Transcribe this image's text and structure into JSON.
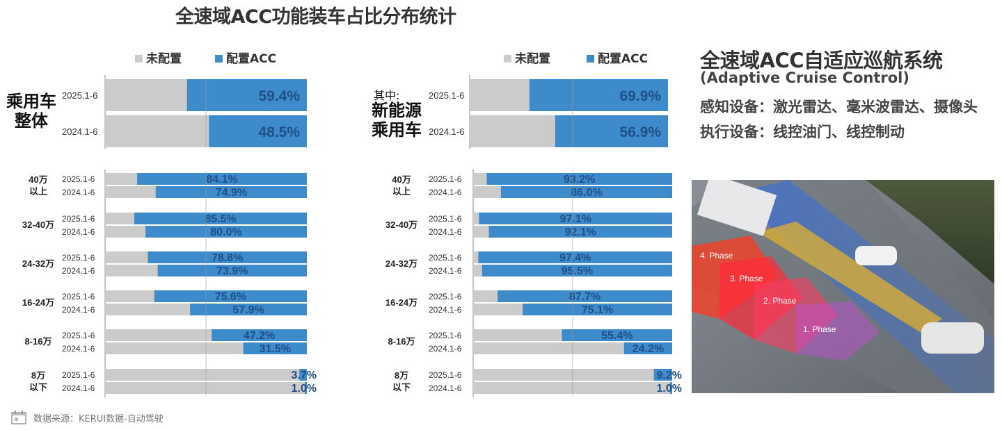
{
  "title": "全速域ACC功能装车占比分布统计",
  "legend": {
    "not_configured": "未配置",
    "configured": "配置ACC"
  },
  "colors": {
    "not_configured": "#cbcbcb",
    "configured": "#3d8bcb",
    "label": "#1f4f86"
  },
  "left_group": {
    "label_line1": "乘用车",
    "label_line2": "整体"
  },
  "right_group": {
    "prefix": "其中:",
    "label_line1": "新能源",
    "label_line2": "乘用车"
  },
  "chart_data": [
    {
      "type": "bar",
      "orientation": "horizontal",
      "stacked": true,
      "panel": "乘用车整体 - 总体",
      "categories": [
        "2025.1-6",
        "2024.1-6"
      ],
      "series": [
        {
          "name": "配置ACC",
          "values": [
            59.4,
            48.5
          ]
        },
        {
          "name": "未配置",
          "values": [
            40.6,
            51.5
          ]
        }
      ],
      "labels": [
        "59.4%",
        "48.5%"
      ]
    },
    {
      "type": "bar",
      "orientation": "horizontal",
      "stacked": true,
      "panel": "乘用车整体 - 价格段",
      "groups": [
        {
          "label_1": "40万",
          "label_2": "以上",
          "rows": [
            {
              "period": "2025.1-6",
              "value": 84.1,
              "text": "84.1%"
            },
            {
              "period": "2024.1-6",
              "value": 74.9,
              "text": "74.9%"
            }
          ]
        },
        {
          "label_1": "32-40万",
          "label_2": "",
          "rows": [
            {
              "period": "2025.1-6",
              "value": 85.5,
              "text": "85.5%"
            },
            {
              "period": "2024.1-6",
              "value": 80.0,
              "text": "80.0%"
            }
          ]
        },
        {
          "label_1": "24-32万",
          "label_2": "",
          "rows": [
            {
              "period": "2025.1-6",
              "value": 78.8,
              "text": "78.8%"
            },
            {
              "period": "2024.1-6",
              "value": 73.9,
              "text": "73.9%"
            }
          ]
        },
        {
          "label_1": "16-24万",
          "label_2": "",
          "rows": [
            {
              "period": "2025.1-6",
              "value": 75.6,
              "text": "75.6%"
            },
            {
              "period": "2024.1-6",
              "value": 57.9,
              "text": "57.9%"
            }
          ]
        },
        {
          "label_1": "8-16万",
          "label_2": "",
          "rows": [
            {
              "period": "2025.1-6",
              "value": 47.2,
              "text": "47.2%"
            },
            {
              "period": "2024.1-6",
              "value": 31.5,
              "text": "31.5%"
            }
          ]
        },
        {
          "label_1": "8万",
          "label_2": "以下",
          "rows": [
            {
              "period": "2025.1-6",
              "value": 3.7,
              "text": "3.7%"
            },
            {
              "period": "2024.1-6",
              "value": 1.0,
              "text": "1.0%"
            }
          ]
        }
      ]
    },
    {
      "type": "bar",
      "orientation": "horizontal",
      "stacked": true,
      "panel": "新能源乘用车 - 总体",
      "categories": [
        "2025.1-6",
        "2024.1-6"
      ],
      "series": [
        {
          "name": "配置ACC",
          "values": [
            69.9,
            56.9
          ]
        },
        {
          "name": "未配置",
          "values": [
            30.1,
            43.1
          ]
        }
      ],
      "labels": [
        "69.9%",
        "56.9%"
      ]
    },
    {
      "type": "bar",
      "orientation": "horizontal",
      "stacked": true,
      "panel": "新能源乘用车 - 价格段",
      "groups": [
        {
          "label_1": "40万",
          "label_2": "以上",
          "rows": [
            {
              "period": "2025.1-6",
              "value": 93.2,
              "text": "93.2%"
            },
            {
              "period": "2024.1-6",
              "value": 86.0,
              "text": "86.0%"
            }
          ]
        },
        {
          "label_1": "32-40万",
          "label_2": "",
          "rows": [
            {
              "period": "2025.1-6",
              "value": 97.1,
              "text": "97.1%"
            },
            {
              "period": "2024.1-6",
              "value": 92.1,
              "text": "92.1%"
            }
          ]
        },
        {
          "label_1": "24-32万",
          "label_2": "",
          "rows": [
            {
              "period": "2025.1-6",
              "value": 97.4,
              "text": "97.4%"
            },
            {
              "period": "2024.1-6",
              "value": 95.5,
              "text": "95.5%"
            }
          ]
        },
        {
          "label_1": "16-24万",
          "label_2": "",
          "rows": [
            {
              "period": "2025.1-6",
              "value": 87.7,
              "text": "87.7%"
            },
            {
              "period": "2024.1-6",
              "value": 75.1,
              "text": "75.1%"
            }
          ]
        },
        {
          "label_1": "8-16万",
          "label_2": "",
          "rows": [
            {
              "period": "2025.1-6",
              "value": 55.4,
              "text": "55.4%"
            },
            {
              "period": "2024.1-6",
              "value": 24.2,
              "text": "24.2%"
            }
          ]
        },
        {
          "label_1": "8万",
          "label_2": "以下",
          "rows": [
            {
              "period": "2025.1-6",
              "value": 9.2,
              "text": "9.2%"
            },
            {
              "period": "2024.1-6",
              "value": 1.0,
              "text": "1.0%"
            }
          ]
        }
      ]
    }
  ],
  "info": {
    "title": "全速域ACC自适应巡航系统",
    "subtitle": "(Adaptive Cruise Control)",
    "line1": "感知设备：激光雷达、毫米波雷达、摄像头",
    "line2": "执行设备：线控油门、线控制动"
  },
  "photo": {
    "phase_labels": [
      "4. Phase",
      "3. Phase",
      "2. Phase",
      "1. Phase"
    ]
  },
  "footer": {
    "source": "数据来源：KERUI数据-自动驾驶"
  }
}
